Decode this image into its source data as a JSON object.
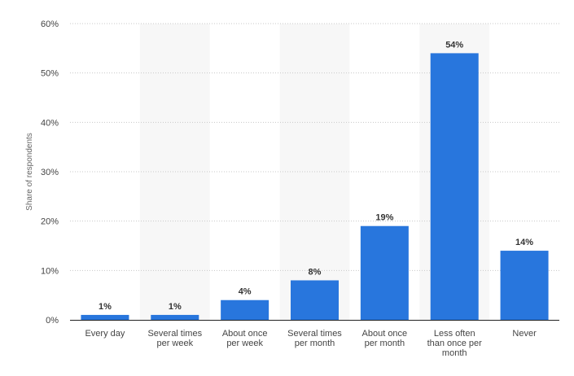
{
  "chart_data": {
    "type": "bar",
    "title": "",
    "xlabel": "",
    "ylabel": "Share of respondents",
    "categories": [
      [
        "Every day"
      ],
      [
        "Several times",
        "per week"
      ],
      [
        "About once",
        "per week"
      ],
      [
        "Several times",
        "per month"
      ],
      [
        "About once",
        "per month"
      ],
      [
        "Less often",
        "than once per",
        "month"
      ],
      [
        "Never"
      ]
    ],
    "values": [
      1,
      1,
      4,
      8,
      19,
      54,
      14
    ],
    "value_labels": [
      "1%",
      "1%",
      "4%",
      "8%",
      "19%",
      "54%",
      "14%"
    ],
    "ylim": [
      0,
      60
    ],
    "yticks": [
      0,
      10,
      20,
      30,
      40,
      50,
      60
    ],
    "ytick_labels": [
      "0%",
      "10%",
      "20%",
      "30%",
      "40%",
      "50%",
      "60%"
    ],
    "grid": true,
    "alternating_column_shading": true,
    "legend": "none",
    "colors": {
      "bar": "#2876dd",
      "gridline": "#c8c8c8",
      "shade": "#f7f7f7",
      "axis": "#222222"
    }
  }
}
